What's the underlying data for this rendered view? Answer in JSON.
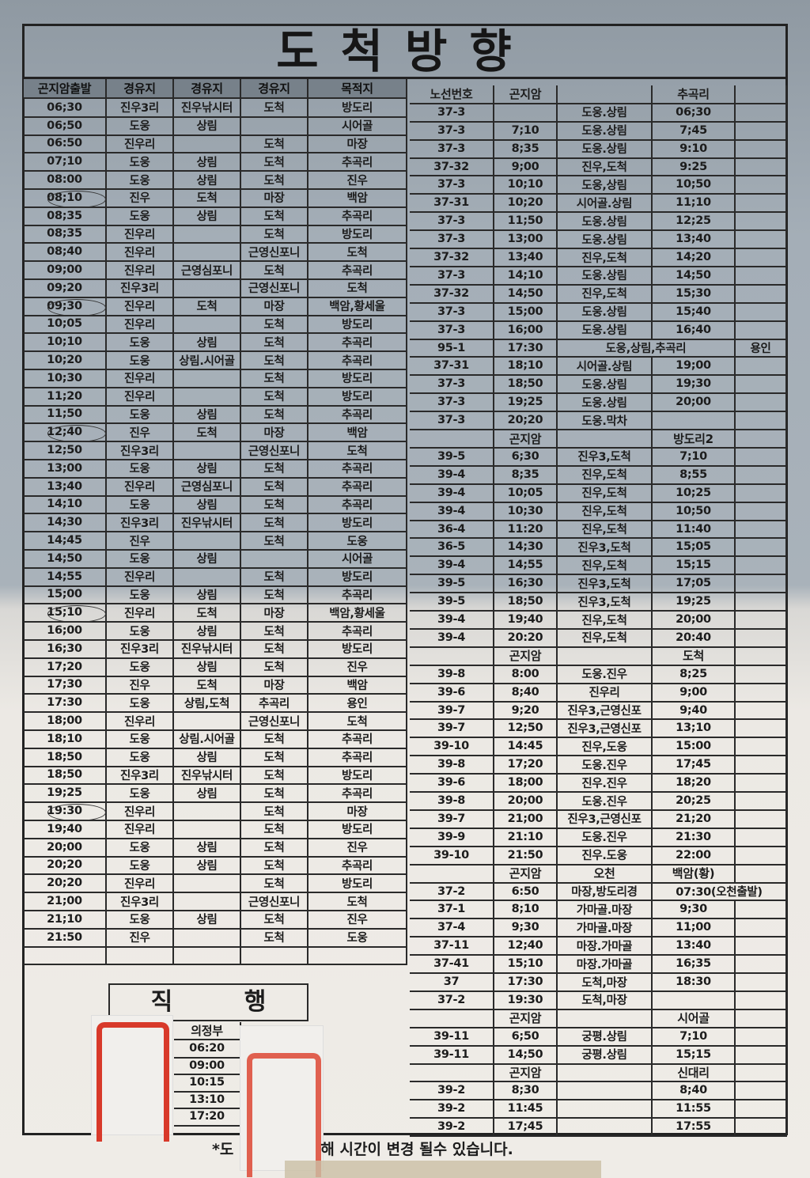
{
  "title": "도척방향",
  "left_table": {
    "headers": [
      "곤지암출발",
      "경유지",
      "경유지",
      "경유지",
      "목적지"
    ],
    "rows": [
      [
        "06;30",
        "진우3리",
        "진우낚시터",
        "도척",
        "방도리"
      ],
      [
        "06;50",
        "도웅",
        "상림",
        "",
        "시어골"
      ],
      [
        "06:50",
        "진우리",
        "",
        "도척",
        "마장"
      ],
      [
        "07;10",
        "도웅",
        "상림",
        "도척",
        "추곡리"
      ],
      [
        "08:00",
        "도웅",
        "상림",
        "도척",
        "진우"
      ],
      [
        "08;10",
        "진우",
        "도척",
        "마장",
        "백암"
      ],
      [
        "08;35",
        "도웅",
        "상림",
        "도척",
        "추곡리"
      ],
      [
        "08;35",
        "진우리",
        "",
        "도척",
        "방도리"
      ],
      [
        "08;40",
        "진우리",
        "",
        "근영신포니",
        "도척"
      ],
      [
        "09;00",
        "진우리",
        "근영심포니",
        "도척",
        "추곡리"
      ],
      [
        "09;20",
        "진우3리",
        "",
        "근영신포니",
        "도척"
      ],
      [
        "09;30",
        "진우리",
        "도척",
        "마장",
        "백암,황세울"
      ],
      [
        "10;05",
        "진우리",
        "",
        "도척",
        "방도리"
      ],
      [
        "10;10",
        "도웅",
        "상림",
        "도척",
        "추곡리"
      ],
      [
        "10;20",
        "도웅",
        "상림.시어골",
        "도척",
        "추곡리"
      ],
      [
        "10;30",
        "진우리",
        "",
        "도척",
        "방도리"
      ],
      [
        "11;20",
        "진우리",
        "",
        "도척",
        "방도리"
      ],
      [
        "11;50",
        "도웅",
        "상림",
        "도척",
        "추곡리"
      ],
      [
        "12;40",
        "진우",
        "도척",
        "마장",
        "백암"
      ],
      [
        "12;50",
        "진우3리",
        "",
        "근영신포니",
        "도척"
      ],
      [
        "13;00",
        "도웅",
        "상림",
        "도척",
        "추곡리"
      ],
      [
        "13;40",
        "진우리",
        "근영심포니",
        "도척",
        "추곡리"
      ],
      [
        "14;10",
        "도웅",
        "상림",
        "도척",
        "추곡리"
      ],
      [
        "14;30",
        "진우3리",
        "진우낚시터",
        "도척",
        "방도리"
      ],
      [
        "14;45",
        "진우",
        "",
        "도척",
        "도웅"
      ],
      [
        "14;50",
        "도웅",
        "상림",
        "",
        "시어골"
      ],
      [
        "14;55",
        "진우리",
        "",
        "도척",
        "방도리"
      ],
      [
        "15;00",
        "도웅",
        "상림",
        "도척",
        "추곡리"
      ],
      [
        "15;10",
        "진우리",
        "도척",
        "마장",
        "백암,황세울"
      ],
      [
        "16;00",
        "도웅",
        "상림",
        "도척",
        "추곡리"
      ],
      [
        "16;30",
        "진우3리",
        "진우낚시터",
        "도척",
        "방도리"
      ],
      [
        "17;20",
        "도웅",
        "상림",
        "도척",
        "진우"
      ],
      [
        "17;30",
        "진우",
        "도척",
        "마장",
        "백암"
      ],
      [
        "17:30",
        "도웅",
        "상림,도척",
        "추곡리",
        "용인"
      ],
      [
        "18;00",
        "진우리",
        "",
        "근영신포니",
        "도척"
      ],
      [
        "18;10",
        "도웅",
        "상림.시어골",
        "도척",
        "추곡리"
      ],
      [
        "18;50",
        "도웅",
        "상림",
        "도척",
        "추곡리"
      ],
      [
        "18;50",
        "진우3리",
        "진우낚시터",
        "도척",
        "방도리"
      ],
      [
        "19;25",
        "도웅",
        "상림",
        "도척",
        "추곡리"
      ],
      [
        "19:30",
        "진우리",
        "",
        "도척",
        "마장"
      ],
      [
        "19;40",
        "진우리",
        "",
        "도척",
        "방도리"
      ],
      [
        "20;00",
        "도웅",
        "상림",
        "도척",
        "진우"
      ],
      [
        "20;20",
        "도웅",
        "상림",
        "도척",
        "추곡리"
      ],
      [
        "20;20",
        "진우리",
        "",
        "도척",
        "방도리"
      ],
      [
        "21;00",
        "진우3리",
        "",
        "근영신포니",
        "도척"
      ],
      [
        "21;10",
        "도웅",
        "상림",
        "도척",
        "진우"
      ],
      [
        "21:50",
        "진우",
        "",
        "도척",
        "도웅"
      ],
      [
        "",
        "",
        "",
        "",
        ""
      ]
    ],
    "circled_times": [
      "08;10",
      "09;30",
      "12;40",
      "15;10",
      "19:30"
    ]
  },
  "right_table": {
    "sections": [
      {
        "headers": [
          "노선번호",
          "곤지암",
          "",
          "추곡리",
          ""
        ],
        "rows": [
          [
            "37-3",
            "",
            "도웅.상림",
            "06;30",
            ""
          ],
          [
            "37-3",
            "7;10",
            "도웅.상림",
            "7;45",
            ""
          ],
          [
            "37-3",
            "8;35",
            "도웅.상림",
            "9:10",
            ""
          ],
          [
            "37-32",
            "9;00",
            "진우,도척",
            "9:25",
            ""
          ],
          [
            "37-3",
            "10;10",
            "도웅,상림",
            "10;50",
            ""
          ],
          [
            "37-31",
            "10;20",
            "시어골.상림",
            "11;10",
            ""
          ],
          [
            "37-3",
            "11;50",
            "도웅.상림",
            "12;25",
            ""
          ],
          [
            "37-3",
            "13;00",
            "도웅.상림",
            "13;40",
            ""
          ],
          [
            "37-32",
            "13;40",
            "진우,도척",
            "14;20",
            ""
          ],
          [
            "37-3",
            "14;10",
            "도웅.상림",
            "14;50",
            ""
          ],
          [
            "37-32",
            "14;50",
            "진우,도척",
            "15;30",
            ""
          ],
          [
            "37-3",
            "15;00",
            "도웅.상림",
            "15;40",
            ""
          ],
          [
            "37-3",
            "16;00",
            "도웅.상림",
            "16;40",
            ""
          ],
          [
            "95-1",
            "17:30",
            "도웅,상림,추곡리",
            null,
            "용인"
          ],
          [
            "37-31",
            "18;10",
            "시어골.상림",
            "19;00",
            ""
          ],
          [
            "37-3",
            "18;50",
            "도웅.상림",
            "19;30",
            ""
          ],
          [
            "37-3",
            "19;25",
            "도웅.상림",
            "20;00",
            ""
          ],
          [
            "37-3",
            "20;20",
            "도웅.막차",
            "",
            ""
          ]
        ]
      },
      {
        "headers": [
          "",
          "곤지암",
          "",
          "방도리2",
          ""
        ],
        "rows": [
          [
            "39-5",
            "6;30",
            "진우3,도척",
            "7;10",
            ""
          ],
          [
            "39-4",
            "8;35",
            "진우,도척",
            "8;55",
            ""
          ],
          [
            "39-4",
            "10;05",
            "진우,도척",
            "10;25",
            ""
          ],
          [
            "39-4",
            "10;30",
            "진우,도척",
            "10;50",
            ""
          ],
          [
            "36-4",
            "11:20",
            "진우,도척",
            "11:40",
            ""
          ],
          [
            "36-5",
            "14;30",
            "진우3,도척",
            "15;05",
            ""
          ],
          [
            "39-4",
            "14;55",
            "진우,도척",
            "15;15",
            ""
          ],
          [
            "39-5",
            "16;30",
            "진우3,도척",
            "17;05",
            ""
          ],
          [
            "39-5",
            "18;50",
            "진우3,도척",
            "19;25",
            ""
          ],
          [
            "39-4",
            "19;40",
            "진우,도척",
            "20;00",
            ""
          ],
          [
            "39-4",
            "20:20",
            "진우,도척",
            "20:40",
            ""
          ]
        ]
      },
      {
        "headers": [
          "",
          "곤지암",
          "",
          "도척",
          ""
        ],
        "rows": [
          [
            "39-8",
            "8:00",
            "도웅.진우",
            "8;25",
            ""
          ],
          [
            "39-6",
            "8;40",
            "진우리",
            "9;00",
            ""
          ],
          [
            "39-7",
            "9;20",
            "진우3,근영신포",
            "9;40",
            ""
          ],
          [
            "39-7",
            "12;50",
            "진우3,근영신포",
            "13;10",
            ""
          ],
          [
            "39-10",
            "14:45",
            "진우,도웅",
            "15:00",
            ""
          ],
          [
            "39-8",
            "17;20",
            "도웅.진우",
            "17;45",
            ""
          ],
          [
            "39-6",
            "18;00",
            "진우.진우",
            "18;20",
            ""
          ],
          [
            "39-8",
            "20;00",
            "도웅.진우",
            "20;25",
            ""
          ],
          [
            "39-7",
            "21;00",
            "진우3,근영신포",
            "21;20",
            ""
          ],
          [
            "39-9",
            "21:10",
            "도웅.진우",
            "21:30",
            ""
          ],
          [
            "39-10",
            "21:50",
            "진우.도웅",
            "22:00",
            ""
          ]
        ]
      },
      {
        "headers": [
          "",
          "곤지암",
          "오천",
          "백암(황)",
          ""
        ],
        "rows": [
          [
            "37-2",
            "6:50",
            "마장,방도리경",
            "07:30(오천출발)",
            null
          ],
          [
            "37-1",
            "8;10",
            "가마골.마장",
            "9;30",
            ""
          ],
          [
            "37-4",
            "9;30",
            "가마골.마장",
            "11;00",
            ""
          ],
          [
            "37-11",
            "12;40",
            "마장.가마골",
            "13:40",
            ""
          ],
          [
            "37-41",
            "15;10",
            "마장.가마골",
            "16;35",
            ""
          ],
          [
            "37",
            "17:30",
            "도척,마장",
            "18:30",
            ""
          ],
          [
            "37-2",
            "19:30",
            "도척,마장",
            "",
            ""
          ]
        ]
      },
      {
        "headers": [
          "",
          "곤지암",
          "",
          "시어골",
          ""
        ],
        "rows": [
          [
            "39-11",
            "6;50",
            "궁평.상림",
            "7;10",
            ""
          ],
          [
            "39-11",
            "14;50",
            "궁평.상림",
            "15;15",
            ""
          ]
        ]
      },
      {
        "headers": [
          "",
          "곤지암",
          "",
          "신대리",
          ""
        ],
        "rows": [
          [
            "39-2",
            "8;30",
            "",
            "8;40",
            ""
          ],
          [
            "39-2",
            "11:45",
            "",
            "11:55",
            ""
          ],
          [
            "39-2",
            "17;45",
            "",
            "17:55",
            ""
          ]
        ]
      }
    ]
  },
  "direct": {
    "title": "직 행",
    "header": "의정부",
    "times": [
      "06:20",
      "09:00",
      "10:15",
      "13:10",
      "17:20"
    ]
  },
  "note": {
    "part1": "*도",
    "part2": "해 시간이 변경 될수 있습니다."
  },
  "colors": {
    "sticker_red": "#d8392a",
    "header_gray": "#77818a"
  }
}
